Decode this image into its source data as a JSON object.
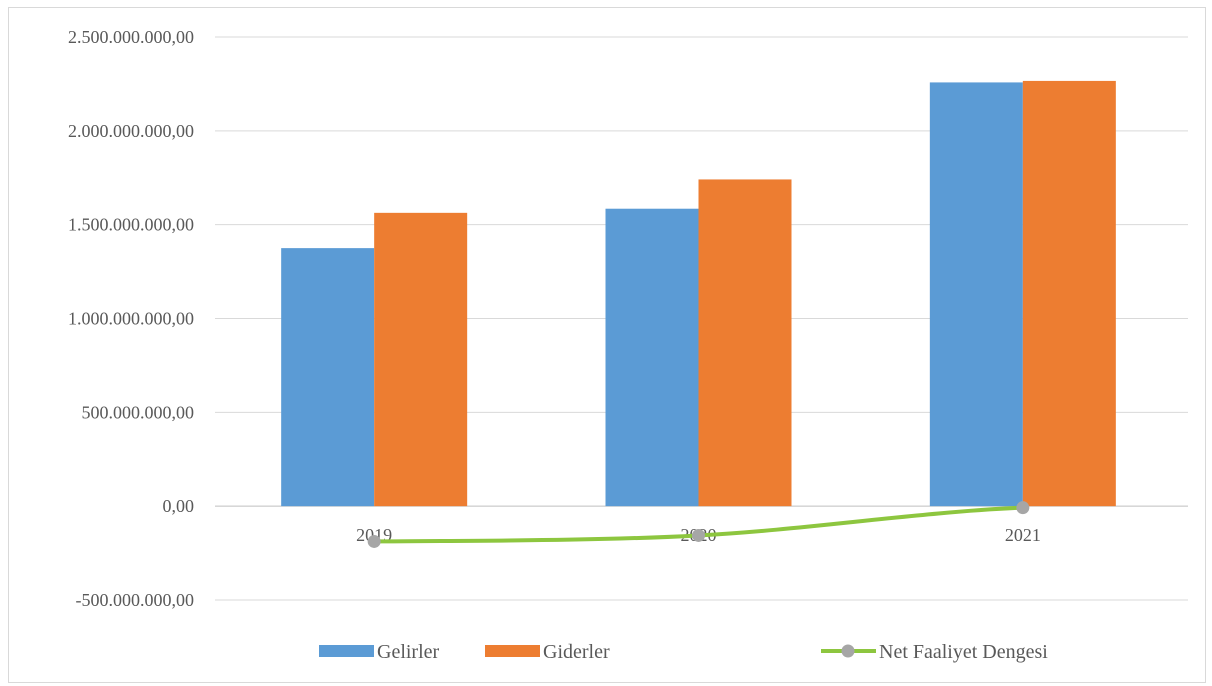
{
  "chart_data": {
    "type": "bar",
    "categories": [
      "2019",
      "2020",
      "2021"
    ],
    "series": [
      {
        "name": "Gelirler",
        "type": "bar",
        "color": "#5b9bd5",
        "values": [
          1375000000,
          1585000000,
          2258000000
        ]
      },
      {
        "name": "Giderler",
        "type": "bar",
        "color": "#ed7d31",
        "values": [
          1563000000,
          1741000000,
          2266000000
        ]
      },
      {
        "name": "Net Faaliyet Dengesi",
        "type": "line",
        "color": "#8dc63f",
        "marker_color": "#a6a6a6",
        "values": [
          -188000000,
          -156000000,
          -8000000
        ]
      }
    ],
    "ylim": [
      -500000000,
      2500000000
    ],
    "yticks": [
      2500000000,
      2000000000,
      1500000000,
      1000000000,
      500000000,
      0,
      -500000000
    ],
    "ytick_labels": [
      "2.500.000.000,00",
      "2.000.000.000,00",
      "1.500.000.000,00",
      "1.000.000.000,00",
      "500.000.000,00",
      "0,00",
      "-500.000.000,00"
    ],
    "grid": true,
    "legend_position": "bottom",
    "title": "",
    "xlabel": "",
    "ylabel": ""
  }
}
